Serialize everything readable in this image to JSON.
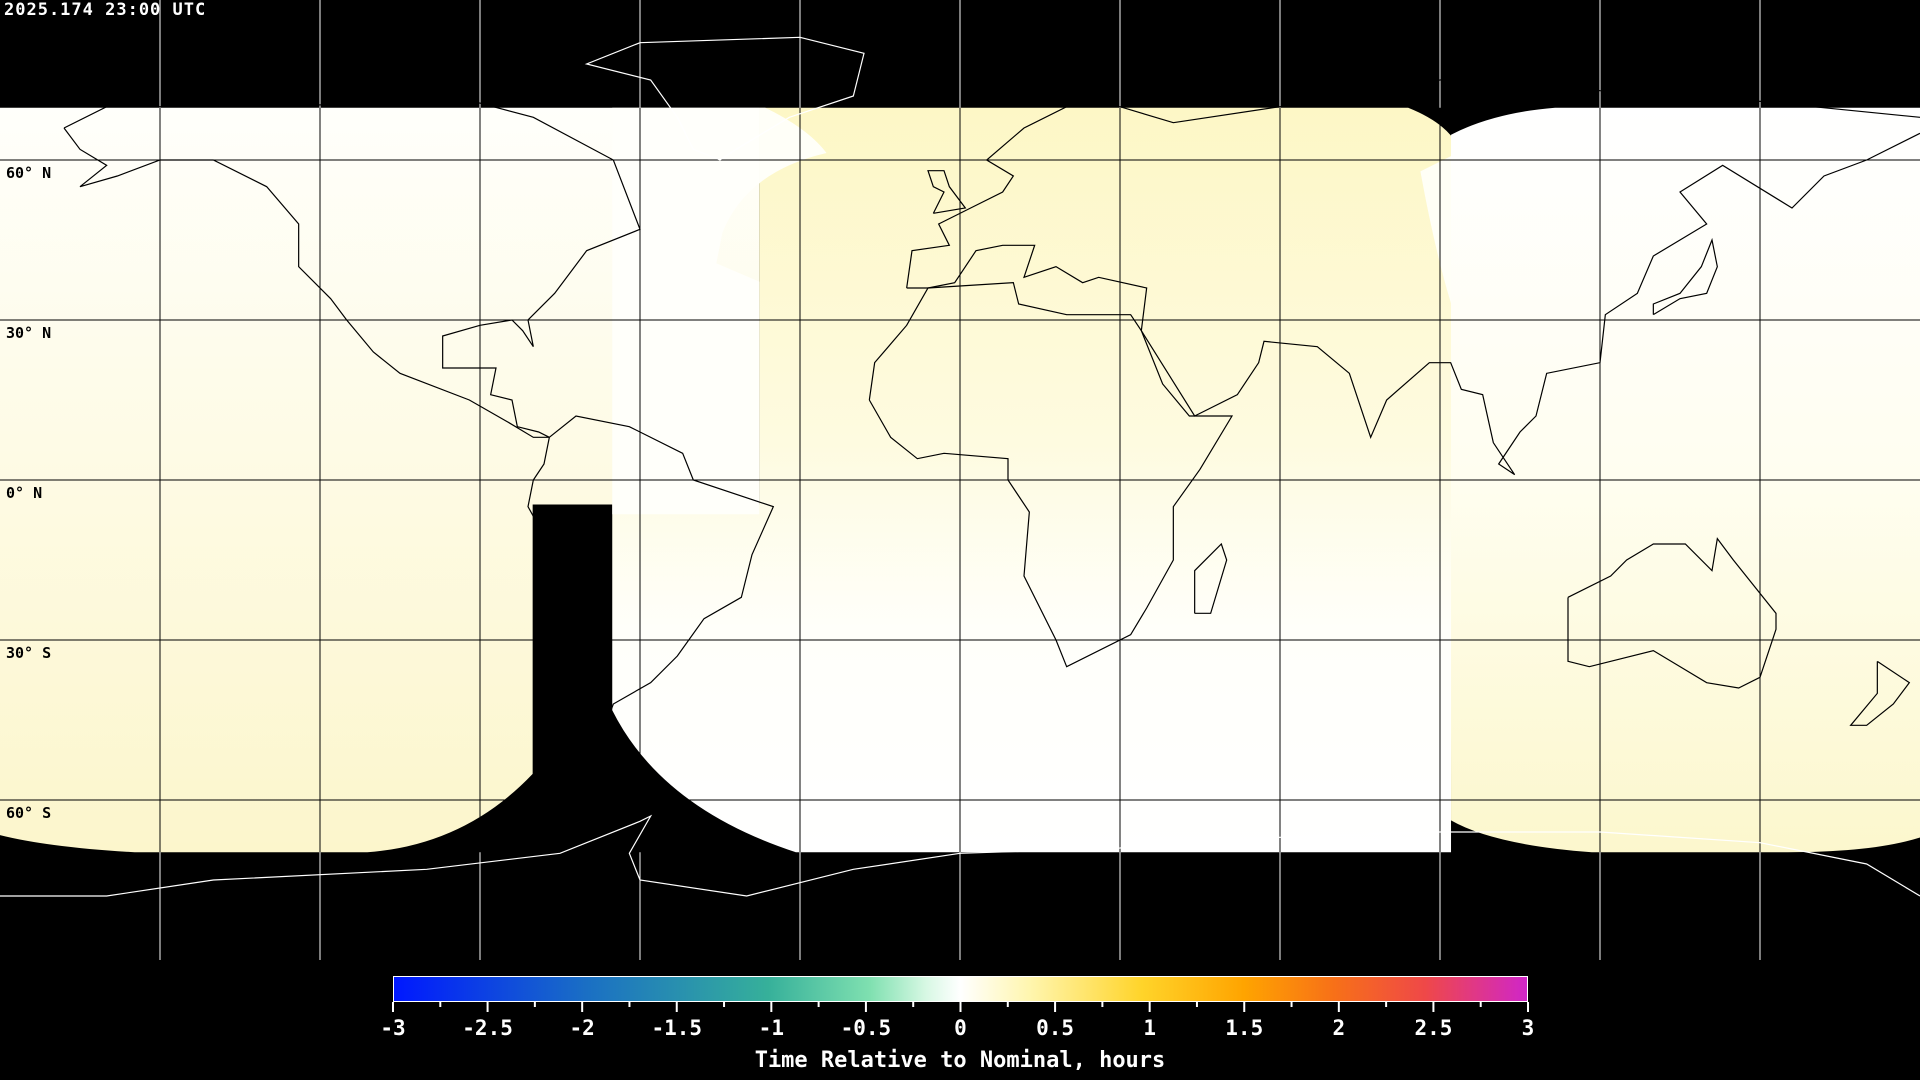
{
  "header": {
    "timestamp": "2025.174 23:00 UTC"
  },
  "map": {
    "projection": "equirectangular",
    "lat_labels": [
      "60° N",
      "30° N",
      "0° N",
      "30° S",
      "60° S"
    ],
    "grid_spacing_deg": 30,
    "colors": {
      "no_data": "#000000",
      "near_zero": "#fffffa",
      "slightly_late": "#fdf8cf",
      "gridline_light": "#000000",
      "gridline_dark": "#ffffff"
    }
  },
  "colorbar": {
    "min": -3,
    "max": 3,
    "tick_labels": [
      "-3",
      "-2.5",
      "-2",
      "-1.5",
      "-1",
      "-0.5",
      "0",
      "0.5",
      "1",
      "1.5",
      "2",
      "2.5",
      "3"
    ],
    "title": "Time Relative to Nominal, hours",
    "colors": {
      "low": "#0018ff",
      "mid": "#ffffff",
      "high": "#d026c8"
    }
  }
}
